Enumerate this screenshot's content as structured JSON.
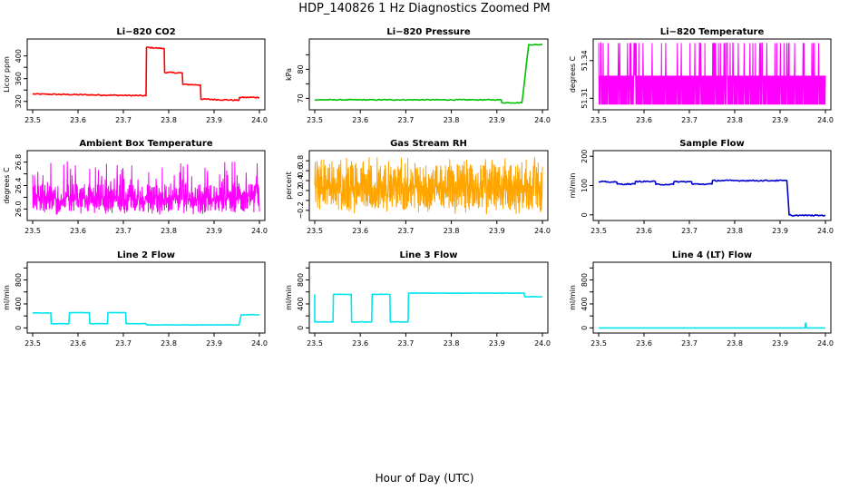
{
  "figure": {
    "title": "HDP_140826  1 Hz Diagnostics Zoomed PM",
    "xlabel": "Hour of Day (UTC)"
  },
  "chart_data": [
    {
      "type": "line",
      "title": "Li−820 CO2",
      "ylabel": "Licor ppm",
      "color": "#ff0000",
      "xlim": [
        23.5,
        24.0
      ],
      "ylim": [
        310,
        425
      ],
      "xticks": [
        "23.5",
        "23.6",
        "23.7",
        "23.8",
        "23.9",
        "24.0"
      ],
      "yticks": [
        320,
        340,
        360,
        380,
        400
      ],
      "ytick_labels": [
        "320",
        "",
        "360",
        "",
        "400"
      ],
      "noise": 1,
      "series": [
        {
          "x": [
            23.5,
            23.75,
            23.751,
            23.79,
            23.791,
            23.83,
            23.831,
            23.87,
            23.871,
            23.955,
            23.956,
            24.0
          ],
          "y": [
            333,
            330,
            415,
            413,
            371,
            370,
            350,
            349,
            324,
            322,
            327,
            327
          ]
        }
      ]
    },
    {
      "type": "line",
      "title": "Li−820 Pressure",
      "ylabel": "kPa",
      "color": "#00c000",
      "xlim": [
        23.5,
        24.0
      ],
      "ylim": [
        67,
        89.5
      ],
      "xticks": [
        "23.5",
        "23.6",
        "23.7",
        "23.8",
        "23.9",
        "24.0"
      ],
      "yticks": [
        70,
        75,
        80,
        85
      ],
      "ytick_labels": [
        "70",
        "",
        "80",
        ""
      ],
      "noise": 0.15,
      "series": [
        {
          "x": [
            23.5,
            23.91,
            23.911,
            23.955,
            23.96,
            23.965,
            23.97,
            24.0
          ],
          "y": [
            69.5,
            69.5,
            68.5,
            68.5,
            75,
            82,
            88.5,
            88.5
          ]
        }
      ]
    },
    {
      "type": "line",
      "title": "Li−820 Temperature",
      "ylabel": "degrees C",
      "color": "#ff00ff",
      "xlim": [
        23.5,
        24.0
      ],
      "ylim": [
        51.303,
        51.355
      ],
      "xticks": [
        "23.5",
        "23.6",
        "23.7",
        "23.8",
        "23.9",
        "24.0"
      ],
      "yticks": [
        51.31,
        51.34
      ],
      "ytick_labels": [
        "51.31",
        "51.34"
      ],
      "noise": 0,
      "mode": "band",
      "band": [
        51.305,
        51.328,
        51.354
      ],
      "series": [
        {
          "x": [
            23.5,
            24.0
          ],
          "y": [
            51.305,
            51.328
          ]
        }
      ]
    },
    {
      "type": "line",
      "title": "Ambient Box Temperature",
      "ylabel": "degrees C",
      "color": "#ff00ff",
      "xlim": [
        23.5,
        24.0
      ],
      "ylim": [
        25.85,
        26.95
      ],
      "xticks": [
        "23.5",
        "23.6",
        "23.7",
        "23.8",
        "23.9",
        "24.0"
      ],
      "yticks": [
        26.0,
        26.2,
        26.4,
        26.6,
        26.8
      ],
      "ytick_labels": [
        "26.0",
        "",
        "26.4",
        "",
        "26.8"
      ],
      "noise": 0,
      "mode": "band",
      "band": [
        26.08,
        26.28,
        26.4,
        25.9,
        26.82
      ],
      "series": [
        {
          "x": [
            23.5,
            24.0
          ],
          "y": [
            26.08,
            26.4
          ]
        }
      ]
    },
    {
      "type": "line",
      "title": "Gas Stream RH",
      "ylabel": "percent",
      "color": "#ffa500",
      "xlim": [
        23.5,
        24.0
      ],
      "ylim": [
        -0.35,
        0.95
      ],
      "xticks": [
        "23.5",
        "23.6",
        "23.7",
        "23.8",
        "23.9",
        "24.0"
      ],
      "yticks": [
        -0.2,
        0.0,
        0.2,
        0.4,
        0.6,
        0.8
      ],
      "ytick_labels": [
        "−0.2",
        "",
        "0.2",
        "0.4",
        "0.6",
        "0.8"
      ],
      "noise": 0,
      "mode": "band",
      "band": [
        0.05,
        0.48,
        0.6,
        -0.3,
        0.88
      ],
      "series": [
        {
          "x": [
            23.5,
            24.0
          ],
          "y": [
            0.05,
            0.6
          ]
        }
      ]
    },
    {
      "type": "line",
      "title": "Sample Flow",
      "ylabel": "ml/min",
      "color": "#0000cd",
      "xlim": [
        23.5,
        24.0
      ],
      "ylim": [
        -10,
        210
      ],
      "xticks": [
        "23.5",
        "23.6",
        "23.7",
        "23.8",
        "23.9",
        "24.0"
      ],
      "yticks": [
        0,
        100,
        200
      ],
      "ytick_labels": [
        "0",
        "100",
        "200"
      ],
      "noise": 2,
      "series": [
        {
          "x": [
            23.5,
            23.54,
            23.541,
            23.58,
            23.581,
            23.625,
            23.626,
            23.665,
            23.666,
            23.705,
            23.706,
            23.75,
            23.751,
            23.915,
            23.92,
            23.925,
            24.0
          ],
          "y": [
            113,
            112,
            105,
            105,
            114,
            114,
            104,
            104,
            113,
            113,
            105,
            105,
            117,
            117,
            0,
            -2,
            -2
          ]
        }
      ]
    },
    {
      "type": "line",
      "title": "Line 2 Flow",
      "ylabel": "ml/min",
      "color": "#00e5ee",
      "xlim": [
        23.5,
        24.0
      ],
      "ylim": [
        -40,
        1050
      ],
      "xticks": [
        "23.5",
        "23.6",
        "23.7",
        "23.8",
        "23.9",
        "24.0"
      ],
      "yticks": [
        0,
        200,
        400,
        600,
        800,
        1000
      ],
      "ytick_labels": [
        "0",
        "",
        "400",
        "",
        "800",
        ""
      ],
      "noise": 3,
      "series": [
        {
          "x": [
            23.5,
            23.5,
            23.54,
            23.541,
            23.58,
            23.581,
            23.625,
            23.626,
            23.665,
            23.666,
            23.705,
            23.706,
            23.75,
            23.751,
            23.955,
            23.96,
            24.0
          ],
          "y": [
            250,
            250,
            250,
            70,
            70,
            255,
            255,
            70,
            70,
            255,
            255,
            70,
            70,
            50,
            50,
            220,
            220
          ]
        }
      ]
    },
    {
      "type": "line",
      "title": "Line 3 Flow",
      "ylabel": "ml/min",
      "color": "#00e5ee",
      "xlim": [
        23.5,
        24.0
      ],
      "ylim": [
        -40,
        1050
      ],
      "xticks": [
        "23.5",
        "23.6",
        "23.7",
        "23.8",
        "23.9",
        "24.0"
      ],
      "yticks": [
        0,
        200,
        400,
        600,
        800,
        1000
      ],
      "ytick_labels": [
        "0",
        "",
        "400",
        "",
        "800",
        ""
      ],
      "noise": 3,
      "series": [
        {
          "x": [
            23.5,
            23.5,
            23.505,
            23.54,
            23.541,
            23.58,
            23.581,
            23.625,
            23.626,
            23.665,
            23.666,
            23.705,
            23.706,
            23.96,
            23.961,
            24.0
          ],
          "y": [
            560,
            100,
            100,
            100,
            560,
            560,
            100,
            100,
            560,
            560,
            100,
            100,
            580,
            580,
            520,
            520
          ]
        }
      ]
    },
    {
      "type": "line",
      "title": "Line 4 (LT) Flow",
      "ylabel": "ml/min",
      "color": "#00e5ee",
      "xlim": [
        23.5,
        24.0
      ],
      "ylim": [
        -40,
        1050
      ],
      "xticks": [
        "23.5",
        "23.6",
        "23.7",
        "23.8",
        "23.9",
        "24.0"
      ],
      "yticks": [
        0,
        200,
        400,
        600,
        800,
        1000
      ],
      "ytick_labels": [
        "0",
        "",
        "400",
        "",
        "800",
        ""
      ],
      "noise": 0,
      "series": [
        {
          "x": [
            23.5,
            23.955,
            23.956,
            23.957,
            23.958,
            24.0
          ],
          "y": [
            0,
            0,
            80,
            80,
            0,
            0
          ]
        }
      ]
    }
  ]
}
